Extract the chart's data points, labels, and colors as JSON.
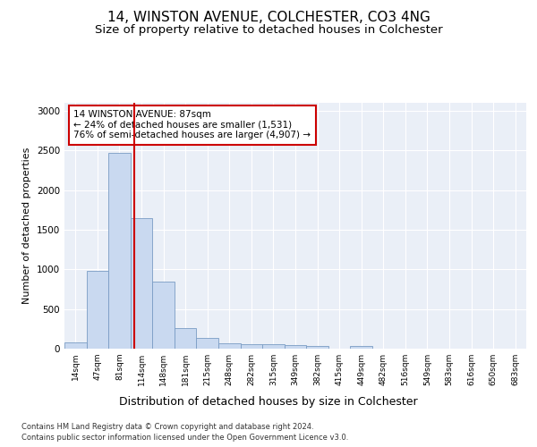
{
  "title": "14, WINSTON AVENUE, COLCHESTER, CO3 4NG",
  "subtitle": "Size of property relative to detached houses in Colchester",
  "xlabel": "Distribution of detached houses by size in Colchester",
  "ylabel": "Number of detached properties",
  "categories": [
    "14sqm",
    "47sqm",
    "81sqm",
    "114sqm",
    "148sqm",
    "181sqm",
    "215sqm",
    "248sqm",
    "282sqm",
    "315sqm",
    "349sqm",
    "382sqm",
    "415sqm",
    "449sqm",
    "482sqm",
    "516sqm",
    "549sqm",
    "583sqm",
    "616sqm",
    "650sqm",
    "683sqm"
  ],
  "values": [
    75,
    985,
    2470,
    1650,
    840,
    260,
    130,
    70,
    60,
    55,
    45,
    30,
    0,
    30,
    0,
    0,
    0,
    0,
    0,
    0,
    0
  ],
  "bar_color": "#c9d9f0",
  "bar_edge_color": "#7a9cc4",
  "property_line_x": 2.67,
  "annotation_text": "14 WINSTON AVENUE: 87sqm\n← 24% of detached houses are smaller (1,531)\n76% of semi-detached houses are larger (4,907) →",
  "annotation_box_color": "#ffffff",
  "annotation_box_edge_color": "#cc0000",
  "line_color": "#cc0000",
  "footer_line1": "Contains HM Land Registry data © Crown copyright and database right 2024.",
  "footer_line2": "Contains public sector information licensed under the Open Government Licence v3.0.",
  "ylim": [
    0,
    3100
  ],
  "yticks": [
    0,
    500,
    1000,
    1500,
    2000,
    2500,
    3000
  ],
  "background_color": "#eaeff7",
  "title_fontsize": 11,
  "subtitle_fontsize": 9.5,
  "xlabel_fontsize": 9,
  "ylabel_fontsize": 8
}
